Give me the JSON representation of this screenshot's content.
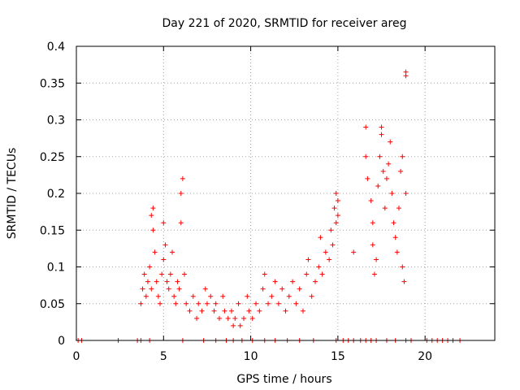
{
  "chart_data": {
    "type": "scatter",
    "title": "Day 221 of 2020, SRMTID for receiver areg",
    "xlabel": "GPS time / hours",
    "ylabel": "SRMTID / TECUs",
    "xlim": [
      0,
      24
    ],
    "ylim": [
      0,
      0.4
    ],
    "xticks": [
      0,
      5,
      10,
      15,
      20
    ],
    "yticks": [
      0,
      0.05,
      0.1,
      0.15,
      0.2,
      0.25,
      0.3,
      0.35,
      0.4
    ],
    "xtick_labels": [
      "0",
      "5",
      "10",
      "15",
      "20"
    ],
    "ytick_labels": [
      "0",
      "0.05",
      "0.1",
      "0.15",
      "0.2",
      "0.25",
      "0.3",
      "0.35",
      "0.4"
    ],
    "grid": true,
    "marker": "+",
    "color": "#ff0000",
    "series": [
      {
        "name": "SRMTID",
        "points": [
          [
            0.1,
            0.0
          ],
          [
            0.3,
            0.0
          ],
          [
            2.4,
            0.0
          ],
          [
            3.5,
            0.0
          ],
          [
            3.7,
            0.0
          ],
          [
            4.2,
            0.0
          ],
          [
            6.1,
            0.0
          ],
          [
            7.3,
            0.0
          ],
          [
            8.0,
            0.0
          ],
          [
            8.6,
            0.0
          ],
          [
            9.0,
            0.0
          ],
          [
            9.5,
            0.0
          ],
          [
            10.1,
            0.0
          ],
          [
            10.8,
            0.0
          ],
          [
            11.4,
            0.0
          ],
          [
            12.1,
            0.0
          ],
          [
            12.8,
            0.0
          ],
          [
            13.6,
            0.0
          ],
          [
            14.9,
            0.0
          ],
          [
            15.3,
            0.0
          ],
          [
            15.6,
            0.0
          ],
          [
            15.9,
            0.0
          ],
          [
            16.3,
            0.0
          ],
          [
            16.6,
            0.0
          ],
          [
            16.9,
            0.0
          ],
          [
            17.2,
            0.0
          ],
          [
            17.8,
            0.0
          ],
          [
            18.3,
            0.0
          ],
          [
            18.9,
            0.0
          ],
          [
            19.2,
            0.0
          ],
          [
            20.1,
            0.0
          ],
          [
            20.4,
            0.0
          ],
          [
            20.7,
            0.0
          ],
          [
            21.0,
            0.0
          ],
          [
            21.3,
            0.0
          ],
          [
            21.6,
            0.0
          ],
          [
            22.0,
            0.0
          ],
          [
            3.7,
            0.05
          ],
          [
            3.8,
            0.07
          ],
          [
            3.9,
            0.09
          ],
          [
            4.0,
            0.06
          ],
          [
            4.1,
            0.08
          ],
          [
            4.2,
            0.1
          ],
          [
            4.3,
            0.07
          ],
          [
            4.3,
            0.17
          ],
          [
            4.4,
            0.18
          ],
          [
            4.4,
            0.15
          ],
          [
            4.5,
            0.12
          ],
          [
            4.6,
            0.08
          ],
          [
            4.7,
            0.06
          ],
          [
            4.8,
            0.05
          ],
          [
            4.9,
            0.09
          ],
          [
            5.0,
            0.11
          ],
          [
            5.0,
            0.16
          ],
          [
            5.1,
            0.13
          ],
          [
            5.2,
            0.08
          ],
          [
            5.3,
            0.07
          ],
          [
            5.4,
            0.09
          ],
          [
            5.5,
            0.12
          ],
          [
            5.6,
            0.06
          ],
          [
            5.7,
            0.05
          ],
          [
            5.8,
            0.08
          ],
          [
            5.9,
            0.07
          ],
          [
            6.0,
            0.2
          ],
          [
            6.1,
            0.22
          ],
          [
            6.0,
            0.16
          ],
          [
            6.2,
            0.09
          ],
          [
            6.3,
            0.05
          ],
          [
            6.5,
            0.04
          ],
          [
            6.7,
            0.06
          ],
          [
            6.9,
            0.03
          ],
          [
            7.0,
            0.05
          ],
          [
            7.2,
            0.04
          ],
          [
            7.4,
            0.07
          ],
          [
            7.5,
            0.05
          ],
          [
            7.7,
            0.06
          ],
          [
            7.9,
            0.04
          ],
          [
            8.0,
            0.05
          ],
          [
            8.2,
            0.03
          ],
          [
            8.4,
            0.06
          ],
          [
            8.5,
            0.04
          ],
          [
            8.7,
            0.03
          ],
          [
            8.9,
            0.04
          ],
          [
            9.0,
            0.02
          ],
          [
            9.1,
            0.03
          ],
          [
            9.3,
            0.05
          ],
          [
            9.4,
            0.02
          ],
          [
            9.6,
            0.03
          ],
          [
            9.8,
            0.06
          ],
          [
            9.9,
            0.04
          ],
          [
            10.1,
            0.03
          ],
          [
            10.3,
            0.05
          ],
          [
            10.5,
            0.04
          ],
          [
            10.7,
            0.07
          ],
          [
            10.8,
            0.09
          ],
          [
            11.0,
            0.05
          ],
          [
            11.2,
            0.06
          ],
          [
            11.4,
            0.08
          ],
          [
            11.6,
            0.05
          ],
          [
            11.8,
            0.07
          ],
          [
            12.0,
            0.04
          ],
          [
            12.2,
            0.06
          ],
          [
            12.4,
            0.08
          ],
          [
            12.6,
            0.05
          ],
          [
            12.8,
            0.07
          ],
          [
            13.0,
            0.04
          ],
          [
            13.2,
            0.09
          ],
          [
            13.3,
            0.11
          ],
          [
            13.5,
            0.06
          ],
          [
            13.7,
            0.08
          ],
          [
            13.9,
            0.1
          ],
          [
            14.0,
            0.14
          ],
          [
            14.1,
            0.09
          ],
          [
            14.3,
            0.12
          ],
          [
            14.5,
            0.11
          ],
          [
            14.6,
            0.15
          ],
          [
            14.7,
            0.13
          ],
          [
            14.8,
            0.18
          ],
          [
            14.9,
            0.2
          ],
          [
            14.9,
            0.16
          ],
          [
            15.0,
            0.17
          ],
          [
            15.0,
            0.19
          ],
          [
            15.9,
            0.12
          ],
          [
            16.6,
            0.29
          ],
          [
            16.6,
            0.25
          ],
          [
            16.7,
            0.22
          ],
          [
            16.9,
            0.19
          ],
          [
            17.0,
            0.16
          ],
          [
            17.0,
            0.13
          ],
          [
            17.1,
            0.09
          ],
          [
            17.2,
            0.11
          ],
          [
            17.3,
            0.21
          ],
          [
            17.4,
            0.25
          ],
          [
            17.5,
            0.29
          ],
          [
            17.5,
            0.28
          ],
          [
            17.6,
            0.23
          ],
          [
            17.7,
            0.18
          ],
          [
            17.8,
            0.22
          ],
          [
            17.9,
            0.24
          ],
          [
            18.0,
            0.27
          ],
          [
            18.1,
            0.2
          ],
          [
            18.2,
            0.16
          ],
          [
            18.3,
            0.14
          ],
          [
            18.4,
            0.12
          ],
          [
            18.5,
            0.18
          ],
          [
            18.6,
            0.23
          ],
          [
            18.7,
            0.25
          ],
          [
            18.7,
            0.1
          ],
          [
            18.8,
            0.08
          ],
          [
            18.9,
            0.2
          ],
          [
            18.9,
            0.36
          ],
          [
            18.9,
            0.365
          ]
        ]
      }
    ]
  }
}
